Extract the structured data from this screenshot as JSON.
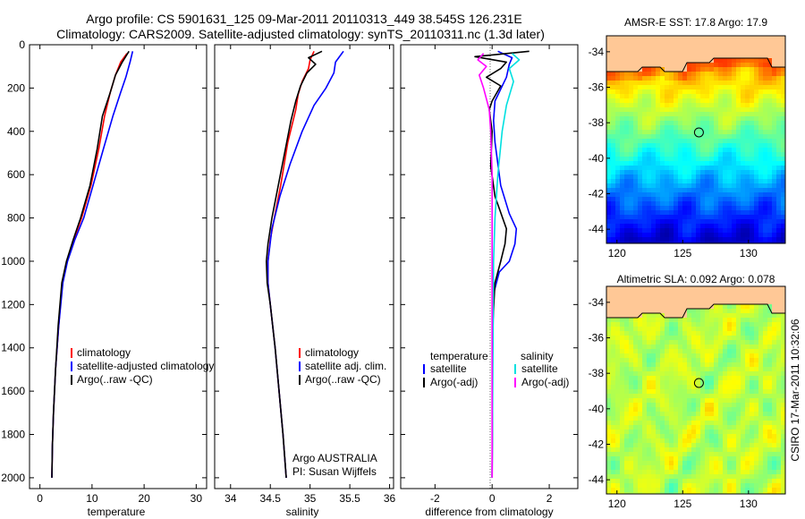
{
  "header": {
    "line1": "Argo profile: CS 5901631_125 09-Mar-2011 20110313_449 38.545S 126.231E",
    "line2": "Climatology: CARS2009. Satellite-adjusted climatology: synTS_20110311.nc (1.3d later)"
  },
  "credit": {
    "agency": "Argo AUSTRALIA",
    "pi": "PI: Susan Wijffels",
    "stamp": "CSIRO 17-Mar-2011 10:32:06"
  },
  "chart_data": [
    {
      "type": "line",
      "id": "temperature",
      "xlabel": "temperature",
      "xlim": [
        -2,
        32
      ],
      "ylim": [
        2050,
        0
      ],
      "xticks": [
        0,
        10,
        20,
        30
      ],
      "yticks": [
        0,
        200,
        400,
        600,
        800,
        1000,
        1200,
        1400,
        1600,
        1800,
        2000
      ],
      "legend": {
        "placement": "lower-center",
        "labels": [
          "climatology",
          "satellite-adjusted climatology",
          "Argo(..raw -QC)"
        ]
      },
      "series": [
        {
          "key": "climatology",
          "color": "#ff0000",
          "points": [
            [
              16.7,
              40
            ],
            [
              15.5,
              80
            ],
            [
              14.5,
              140
            ],
            [
              13.5,
              220
            ],
            [
              12.4,
              330
            ],
            [
              11.3,
              480
            ],
            [
              9.8,
              650
            ],
            [
              8.0,
              800
            ],
            [
              6.5,
              900
            ],
            [
              5.2,
              1000
            ],
            [
              4.3,
              1100
            ],
            [
              3.6,
              1300
            ],
            [
              3.0,
              1500
            ],
            [
              2.6,
              1700
            ],
            [
              2.4,
              1850
            ],
            [
              2.3,
              2000
            ]
          ]
        },
        {
          "key": "satellite",
          "color": "#0000ff",
          "points": [
            [
              17.8,
              30
            ],
            [
              17.3,
              80
            ],
            [
              16.5,
              150
            ],
            [
              15.5,
              220
            ],
            [
              14.0,
              330
            ],
            [
              12.2,
              480
            ],
            [
              10.2,
              650
            ],
            [
              8.4,
              800
            ],
            [
              6.7,
              900
            ],
            [
              5.3,
              1000
            ],
            [
              4.4,
              1100
            ],
            [
              3.6,
              1300
            ],
            [
              3.0,
              1500
            ],
            [
              2.6,
              1700
            ],
            [
              2.4,
              1850
            ],
            [
              2.3,
              2000
            ]
          ]
        },
        {
          "key": "argo",
          "color": "#000000",
          "points": [
            [
              17.1,
              30
            ],
            [
              15.8,
              80
            ],
            [
              14.5,
              140
            ],
            [
              13.5,
              220
            ],
            [
              12.0,
              330
            ],
            [
              11.0,
              480
            ],
            [
              9.6,
              650
            ],
            [
              7.8,
              800
            ],
            [
              6.4,
              900
            ],
            [
              5.1,
              1000
            ],
            [
              4.2,
              1100
            ],
            [
              3.5,
              1300
            ],
            [
              3.0,
              1500
            ],
            [
              2.6,
              1700
            ],
            [
              2.4,
              1850
            ],
            [
              2.3,
              2000
            ]
          ]
        }
      ]
    },
    {
      "type": "line",
      "id": "salinity",
      "xlabel": "salinity",
      "xlim": [
        33.8,
        36.05
      ],
      "ylim": [
        2050,
        0
      ],
      "xticks": [
        34,
        34.5,
        35,
        35.5,
        36
      ],
      "legend": {
        "placement": "lower-center",
        "labels": [
          "climatology",
          "satellite adj. clim.",
          "Argo(..raw -QC)"
        ]
      },
      "series": [
        {
          "key": "climatology",
          "color": "#ff0000",
          "points": [
            [
              35.05,
              30
            ],
            [
              35.0,
              70
            ],
            [
              34.98,
              110
            ],
            [
              34.9,
              170
            ],
            [
              34.85,
              230
            ],
            [
              34.82,
              300
            ],
            [
              34.72,
              450
            ],
            [
              34.63,
              650
            ],
            [
              34.55,
              800
            ],
            [
              34.5,
              900
            ],
            [
              34.47,
              1000
            ],
            [
              34.47,
              1100
            ],
            [
              34.5,
              1200
            ],
            [
              34.56,
              1400
            ],
            [
              34.61,
              1600
            ],
            [
              34.66,
              1800
            ],
            [
              34.7,
              2000
            ]
          ]
        },
        {
          "key": "satellite",
          "color": "#0000ff",
          "points": [
            [
              35.42,
              30
            ],
            [
              35.32,
              80
            ],
            [
              35.3,
              130
            ],
            [
              35.2,
              200
            ],
            [
              35.05,
              280
            ],
            [
              34.9,
              400
            ],
            [
              34.75,
              550
            ],
            [
              34.62,
              700
            ],
            [
              34.52,
              850
            ],
            [
              34.47,
              1000
            ],
            [
              34.47,
              1100
            ],
            [
              34.5,
              1200
            ],
            [
              34.56,
              1400
            ],
            [
              34.61,
              1600
            ],
            [
              34.66,
              1800
            ],
            [
              34.7,
              2000
            ]
          ]
        },
        {
          "key": "argo",
          "color": "#000000",
          "points": [
            [
              35.15,
              30
            ],
            [
              34.98,
              60
            ],
            [
              35.07,
              90
            ],
            [
              34.96,
              130
            ],
            [
              34.88,
              190
            ],
            [
              34.82,
              260
            ],
            [
              34.76,
              350
            ],
            [
              34.68,
              500
            ],
            [
              34.6,
              650
            ],
            [
              34.52,
              800
            ],
            [
              34.47,
              920
            ],
            [
              34.45,
              1000
            ],
            [
              34.46,
              1100
            ],
            [
              34.5,
              1200
            ],
            [
              34.56,
              1400
            ],
            [
              34.61,
              1600
            ],
            [
              34.66,
              1800
            ],
            [
              34.7,
              2000
            ]
          ]
        }
      ]
    },
    {
      "type": "line",
      "id": "difference",
      "xlabel": "difference from climatology",
      "xlim": [
        -3.2,
        3.0
      ],
      "ylim": [
        2050,
        0
      ],
      "xticks": [
        -2,
        0,
        2
      ],
      "legend": {
        "placement": "lower-center",
        "labels": [
          "temperature",
          "satellite",
          "Argo(-adj)",
          "salinity",
          "satellite",
          "Argo(-adj)"
        ]
      },
      "series": [
        {
          "key": "temp-satellite",
          "color": "#0000ff",
          "points": [
            [
              0.2,
              30
            ],
            [
              0.7,
              60
            ],
            [
              0.6,
              90
            ],
            [
              0.5,
              150
            ],
            [
              0.1,
              260
            ],
            [
              0.05,
              350
            ],
            [
              0.1,
              450
            ],
            [
              0.3,
              650
            ],
            [
              0.6,
              780
            ],
            [
              0.85,
              850
            ],
            [
              0.8,
              920
            ],
            [
              0.6,
              1000
            ],
            [
              0.25,
              1050
            ],
            [
              0.05,
              1150
            ],
            [
              0.02,
              1400
            ],
            [
              0.0,
              2000
            ]
          ]
        },
        {
          "key": "temp-argo",
          "color": "#000000",
          "points": [
            [
              1.3,
              30
            ],
            [
              -0.6,
              55
            ],
            [
              0.5,
              80
            ],
            [
              0.3,
              110
            ],
            [
              -0.2,
              150
            ],
            [
              0.3,
              190
            ],
            [
              0.0,
              260
            ],
            [
              -0.1,
              300
            ],
            [
              0.0,
              400
            ],
            [
              -0.05,
              560
            ],
            [
              0.1,
              700
            ],
            [
              0.5,
              850
            ],
            [
              0.45,
              920
            ],
            [
              0.3,
              1000
            ],
            [
              0.1,
              1100
            ],
            [
              0.02,
              1300
            ],
            [
              0.0,
              2000
            ]
          ]
        },
        {
          "key": "sal-satellite",
          "color": "#00e0e0",
          "points": [
            [
              0.7,
              40
            ],
            [
              0.95,
              70
            ],
            [
              0.6,
              110
            ],
            [
              0.75,
              170
            ],
            [
              0.5,
              280
            ],
            [
              0.35,
              400
            ],
            [
              0.2,
              600
            ],
            [
              0.1,
              800
            ],
            [
              0.05,
              1000
            ],
            [
              0.0,
              2000
            ]
          ]
        },
        {
          "key": "sal-argo",
          "color": "#ff00ff",
          "points": [
            [
              -0.3,
              40
            ],
            [
              -0.5,
              70
            ],
            [
              -0.2,
              100
            ],
            [
              -0.45,
              140
            ],
            [
              -0.3,
              200
            ],
            [
              -0.1,
              300
            ],
            [
              -0.05,
              400
            ],
            [
              0.0,
              600
            ],
            [
              0.0,
              2000
            ]
          ]
        }
      ]
    },
    {
      "type": "heatmap",
      "id": "sst-map",
      "title": "AMSR-E SST: 17.8 Argo: 17.9",
      "xlim": [
        119.2,
        132.8
      ],
      "ylim": [
        -44.8,
        -33.1
      ],
      "xticks": [
        120,
        125,
        130
      ],
      "yticks": [
        -34,
        -36,
        -38,
        -40,
        -42,
        -44
      ],
      "marker": [
        126.231,
        -38.545
      ]
    },
    {
      "type": "heatmap",
      "id": "sla-map",
      "title": "Altimetric SLA: 0.092 Argo: 0.078",
      "xlim": [
        119.2,
        132.8
      ],
      "ylim": [
        -44.8,
        -33.1
      ],
      "xticks": [
        120,
        125,
        130
      ],
      "yticks": [
        -34,
        -36,
        -38,
        -40,
        -42,
        -44
      ],
      "marker": [
        126.231,
        -38.545
      ]
    }
  ]
}
